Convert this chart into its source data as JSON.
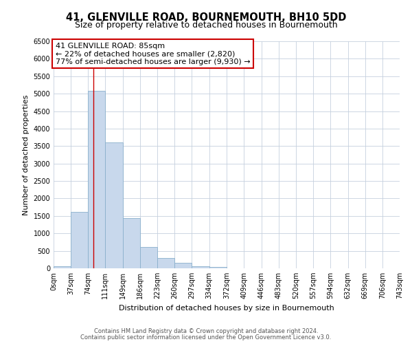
{
  "title": "41, GLENVILLE ROAD, BOURNEMOUTH, BH10 5DD",
  "subtitle": "Size of property relative to detached houses in Bournemouth",
  "xlabel": "Distribution of detached houses by size in Bournemouth",
  "ylabel": "Number of detached properties",
  "bin_edges": [
    0,
    37,
    74,
    111,
    149,
    186,
    223,
    260,
    297,
    334,
    372,
    409,
    446,
    483,
    520,
    557,
    594,
    632,
    669,
    706,
    743
  ],
  "bin_labels": [
    "0sqm",
    "37sqm",
    "74sqm",
    "111sqm",
    "149sqm",
    "186sqm",
    "223sqm",
    "260sqm",
    "297sqm",
    "334sqm",
    "372sqm",
    "409sqm",
    "446sqm",
    "483sqm",
    "520sqm",
    "557sqm",
    "594sqm",
    "632sqm",
    "669sqm",
    "706sqm",
    "743sqm"
  ],
  "bar_heights": [
    60,
    1620,
    5080,
    3600,
    1430,
    620,
    300,
    150,
    60,
    30,
    0,
    0,
    0,
    0,
    0,
    0,
    0,
    0,
    0,
    0
  ],
  "bar_color": "#c8d8ec",
  "bar_edge_color": "#8ab0cc",
  "vline_x": 85,
  "vline_color": "#cc0000",
  "ylim": [
    0,
    6500
  ],
  "yticks": [
    0,
    500,
    1000,
    1500,
    2000,
    2500,
    3000,
    3500,
    4000,
    4500,
    5000,
    5500,
    6000,
    6500
  ],
  "annotation_title": "41 GLENVILLE ROAD: 85sqm",
  "annotation_line1": "← 22% of detached houses are smaller (2,820)",
  "annotation_line2": "77% of semi-detached houses are larger (9,930) →",
  "annotation_box_color": "#ffffff",
  "annotation_box_edge": "#cc0000",
  "footer1": "Contains HM Land Registry data © Crown copyright and database right 2024.",
  "footer2": "Contains public sector information licensed under the Open Government Licence v3.0.",
  "bg_color": "#ffffff",
  "grid_color": "#c5d0de",
  "title_fontsize": 10.5,
  "subtitle_fontsize": 9,
  "axis_label_fontsize": 8,
  "tick_fontsize": 7,
  "annotation_fontsize": 8,
  "footer_fontsize": 6
}
